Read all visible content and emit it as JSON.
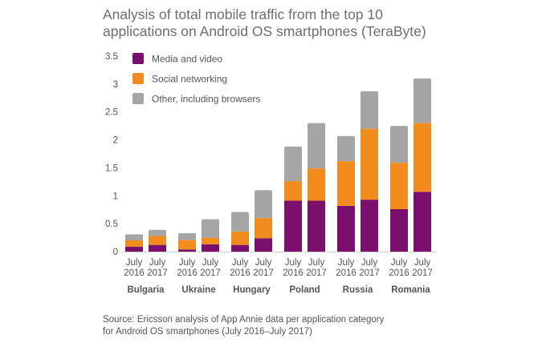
{
  "chart_data": {
    "type": "bar",
    "stacked": true,
    "title_lines": [
      "Analysis of total mobile traffic from the top 10",
      "applications on Android OS smartphones (TeraByte)"
    ],
    "groups": [
      {
        "name": "Bulgaria",
        "bars": [
          {
            "label": [
              "July",
              "2016"
            ]
          },
          {
            "label": [
              "July",
              "2017"
            ]
          }
        ]
      },
      {
        "name": "Ukraine",
        "bars": [
          {
            "label": [
              "July",
              "2016"
            ]
          },
          {
            "label": [
              "July",
              "2017"
            ]
          }
        ]
      },
      {
        "name": "Hungary",
        "bars": [
          {
            "label": [
              "July",
              "2016"
            ]
          },
          {
            "label": [
              "July",
              "2017"
            ]
          }
        ]
      },
      {
        "name": "Poland",
        "bars": [
          {
            "label": [
              "July",
              "2016"
            ]
          },
          {
            "label": [
              "July",
              "2017"
            ]
          }
        ]
      },
      {
        "name": "Russia",
        "bars": [
          {
            "label": [
              "July",
              "2016"
            ]
          },
          {
            "label": [
              "July",
              "2017"
            ]
          }
        ]
      },
      {
        "name": "Romania",
        "bars": [
          {
            "label": [
              "July",
              "2016"
            ]
          },
          {
            "label": [
              "July",
              "2017"
            ]
          }
        ]
      }
    ],
    "series": [
      {
        "name": "Media and video",
        "color": "#7a0f6e",
        "values": [
          0.09,
          0.12,
          0.04,
          0.13,
          0.12,
          0.24,
          0.91,
          0.91,
          0.82,
          0.93,
          0.76,
          1.07
        ]
      },
      {
        "name": "Social networking",
        "color": "#f28c1e",
        "values": [
          0.11,
          0.16,
          0.17,
          0.12,
          0.24,
          0.36,
          0.35,
          0.58,
          0.8,
          1.27,
          0.83,
          1.23
        ]
      },
      {
        "name": "Other, including browsers",
        "color": "#a5a5a5",
        "values": [
          0.11,
          0.11,
          0.12,
          0.33,
          0.35,
          0.5,
          0.62,
          0.81,
          0.45,
          0.67,
          0.66,
          0.8
        ]
      }
    ],
    "y_ticks": [
      "0",
      "0.5",
      "1",
      "1.5",
      "2",
      "2.5",
      "3",
      "3.5"
    ],
    "ylim": [
      0,
      3.5
    ],
    "grid": false,
    "legend": "top-left"
  },
  "source_lines": [
    "Source: Ericsson analysis of App Annie data per application category",
    "for Android OS smartphones (July 2016–July 2017)"
  ]
}
